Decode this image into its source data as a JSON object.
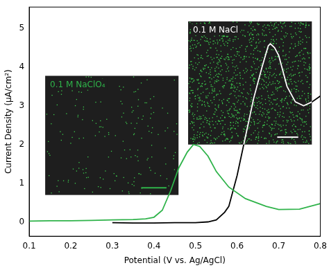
{
  "chart_data": {
    "type": "line",
    "x_label": "Potential (V vs. Ag/AgCl)",
    "y_label": "Current Density (µA/cm²)",
    "xlim": [
      0.1,
      0.8
    ],
    "xticks": [
      0.1,
      0.2,
      0.3,
      0.4,
      0.5,
      0.6,
      0.7,
      0.8
    ],
    "ylim": [
      -0.37,
      5.55
    ],
    "yticks": [
      0,
      1,
      2,
      3,
      4,
      5
    ],
    "grid": false,
    "series": [
      {
        "name": "0.1 M NaClO₄",
        "color": "#2fb34a",
        "x": [
          0.1,
          0.15,
          0.2,
          0.25,
          0.3,
          0.35,
          0.38,
          0.4,
          0.42,
          0.44,
          0.46,
          0.48,
          0.495,
          0.51,
          0.53,
          0.55,
          0.58,
          0.62,
          0.67,
          0.7,
          0.75,
          0.8
        ],
        "values": [
          0.02,
          0.03,
          0.03,
          0.04,
          0.05,
          0.06,
          0.08,
          0.12,
          0.3,
          0.8,
          1.4,
          1.8,
          2.0,
          1.95,
          1.7,
          1.3,
          0.9,
          0.6,
          0.4,
          0.32,
          0.33,
          0.47
        ]
      },
      {
        "name": "0.1 M NaCl",
        "color": "#000000",
        "x": [
          0.3,
          0.35,
          0.4,
          0.45,
          0.5,
          0.53,
          0.55,
          0.57,
          0.58,
          0.6,
          0.62,
          0.64,
          0.66,
          0.675,
          0.68,
          0.69,
          0.7,
          0.72,
          0.74,
          0.76,
          0.78,
          0.8
        ],
        "values": [
          -0.02,
          -0.03,
          -0.03,
          -0.02,
          -0.02,
          0.0,
          0.05,
          0.25,
          0.4,
          1.2,
          2.2,
          3.2,
          4.0,
          4.55,
          4.6,
          4.5,
          4.3,
          3.5,
          3.1,
          3.0,
          3.1,
          3.25
        ]
      }
    ]
  }
}
